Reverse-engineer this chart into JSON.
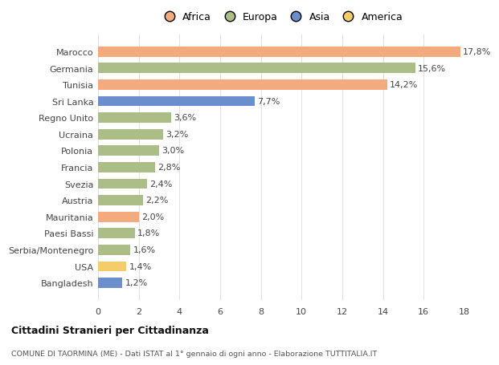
{
  "categories": [
    "Marocco",
    "Germania",
    "Tunisia",
    "Sri Lanka",
    "Regno Unito",
    "Ucraina",
    "Polonia",
    "Francia",
    "Svezia",
    "Austria",
    "Mauritania",
    "Paesi Bassi",
    "Serbia/Montenegro",
    "USA",
    "Bangladesh"
  ],
  "values": [
    17.8,
    15.6,
    14.2,
    7.7,
    3.6,
    3.2,
    3.0,
    2.8,
    2.4,
    2.2,
    2.0,
    1.8,
    1.6,
    1.4,
    1.2
  ],
  "labels": [
    "17,8%",
    "15,6%",
    "14,2%",
    "7,7%",
    "3,6%",
    "3,2%",
    "3,0%",
    "2,8%",
    "2,4%",
    "2,2%",
    "2,0%",
    "1,8%",
    "1,6%",
    "1,4%",
    "1,2%"
  ],
  "colors": [
    "#F2AA7E",
    "#ABBE88",
    "#F2AA7E",
    "#6B8FCC",
    "#ABBE88",
    "#ABBE88",
    "#ABBE88",
    "#ABBE88",
    "#ABBE88",
    "#ABBE88",
    "#F2AA7E",
    "#ABBE88",
    "#ABBE88",
    "#F5CC6A",
    "#6B8FCC"
  ],
  "legend_labels": [
    "Africa",
    "Europa",
    "Asia",
    "America"
  ],
  "legend_colors": [
    "#F2AA7E",
    "#ABBE88",
    "#6B8FCC",
    "#F5CC6A"
  ],
  "title": "Cittadini Stranieri per Cittadinanza",
  "subtitle": "COMUNE DI TAORMINA (ME) - Dati ISTAT al 1° gennaio di ogni anno - Elaborazione TUTTITALIA.IT",
  "xlim": [
    0,
    18
  ],
  "xticks": [
    0,
    2,
    4,
    6,
    8,
    10,
    12,
    14,
    16,
    18
  ],
  "background_color": "#ffffff",
  "grid_color": "#e0e0e0"
}
